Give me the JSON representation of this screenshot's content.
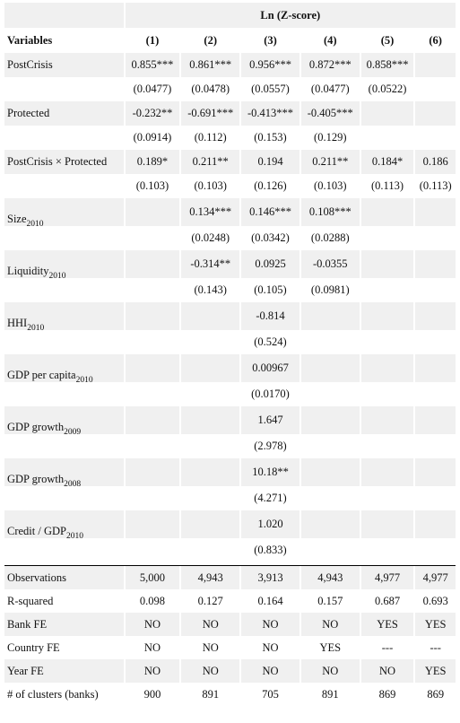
{
  "header": {
    "dependent": "Ln (Z-score)",
    "variables_label": "Variables",
    "columns": [
      "(1)",
      "(2)",
      "(3)",
      "(4)",
      "(5)",
      "(6)"
    ]
  },
  "rows": [
    {
      "name": "PostCrisis",
      "sub": "",
      "coef": [
        "0.855***",
        "0.861***",
        "0.956***",
        "0.872***",
        "0.858***",
        ""
      ],
      "se": [
        "(0.0477)",
        "(0.0478)",
        "(0.0557)",
        "(0.0477)",
        "(0.0522)",
        ""
      ]
    },
    {
      "name": "Protected",
      "sub": "",
      "coef": [
        "-0.232**",
        "-0.691***",
        "-0.413***",
        "-0.405***",
        "",
        ""
      ],
      "se": [
        "(0.0914)",
        "(0.112)",
        "(0.153)",
        "(0.129)",
        "",
        ""
      ]
    },
    {
      "name": "PostCrisis × Protected",
      "sub": "",
      "coef": [
        "0.189*",
        "0.211**",
        "0.194",
        "0.211**",
        "0.184*",
        "0.186"
      ],
      "se": [
        "(0.103)",
        "(0.103)",
        "(0.126)",
        "(0.103)",
        "(0.113)",
        "(0.113)"
      ]
    },
    {
      "name": "Size",
      "sub": "2010",
      "coef": [
        "",
        "0.134***",
        "0.146***",
        "0.108***",
        "",
        ""
      ],
      "se": [
        "",
        "(0.0248)",
        "(0.0342)",
        "(0.0288)",
        "",
        ""
      ]
    },
    {
      "name": "Liquidity",
      "sub": "2010",
      "coef": [
        "",
        "-0.314**",
        "0.0925",
        "-0.0355",
        "",
        ""
      ],
      "se": [
        "",
        "(0.143)",
        "(0.105)",
        "(0.0981)",
        "",
        ""
      ]
    },
    {
      "name": "HHI",
      "sub": "2010",
      "coef": [
        "",
        "",
        "-0.814",
        "",
        "",
        ""
      ],
      "se": [
        "",
        "",
        "(0.524)",
        "",
        "",
        ""
      ]
    },
    {
      "name": "GDP per capita",
      "sub": "2010",
      "coef": [
        "",
        "",
        "0.00967",
        "",
        "",
        ""
      ],
      "se": [
        "",
        "",
        "(0.0170)",
        "",
        "",
        ""
      ]
    },
    {
      "name": "GDP growth",
      "sub": "2009",
      "coef": [
        "",
        "",
        "1.647",
        "",
        "",
        ""
      ],
      "se": [
        "",
        "",
        "(2.978)",
        "",
        "",
        ""
      ]
    },
    {
      "name": "GDP growth",
      "sub": "2008",
      "coef": [
        "",
        "",
        "10.18**",
        "",
        "",
        ""
      ],
      "se": [
        "",
        "",
        "(4.271)",
        "",
        "",
        ""
      ]
    },
    {
      "name": "Credit / GDP",
      "sub": "2010",
      "coef": [
        "",
        "",
        "1.020",
        "",
        "",
        ""
      ],
      "se": [
        "",
        "",
        "(0.833)",
        "",
        "",
        ""
      ]
    }
  ],
  "stats": [
    {
      "name": "Observations",
      "values": [
        "5,000",
        "4,943",
        "3,913",
        "4,943",
        "4,977",
        "4,977"
      ]
    },
    {
      "name": "R-squared",
      "values": [
        "0.098",
        "0.127",
        "0.164",
        "0.157",
        "0.687",
        "0.693"
      ]
    },
    {
      "name": "Bank FE",
      "values": [
        "NO",
        "NO",
        "NO",
        "NO",
        "YES",
        "YES"
      ]
    },
    {
      "name": "Country FE",
      "values": [
        "NO",
        "NO",
        "NO",
        "YES",
        "---",
        "---"
      ]
    },
    {
      "name": "Year FE",
      "values": [
        "NO",
        "NO",
        "NO",
        "NO",
        "NO",
        "YES"
      ]
    },
    {
      "name": "# of clusters (banks)",
      "values": [
        "900",
        "891",
        "705",
        "891",
        "869",
        "869"
      ]
    }
  ]
}
